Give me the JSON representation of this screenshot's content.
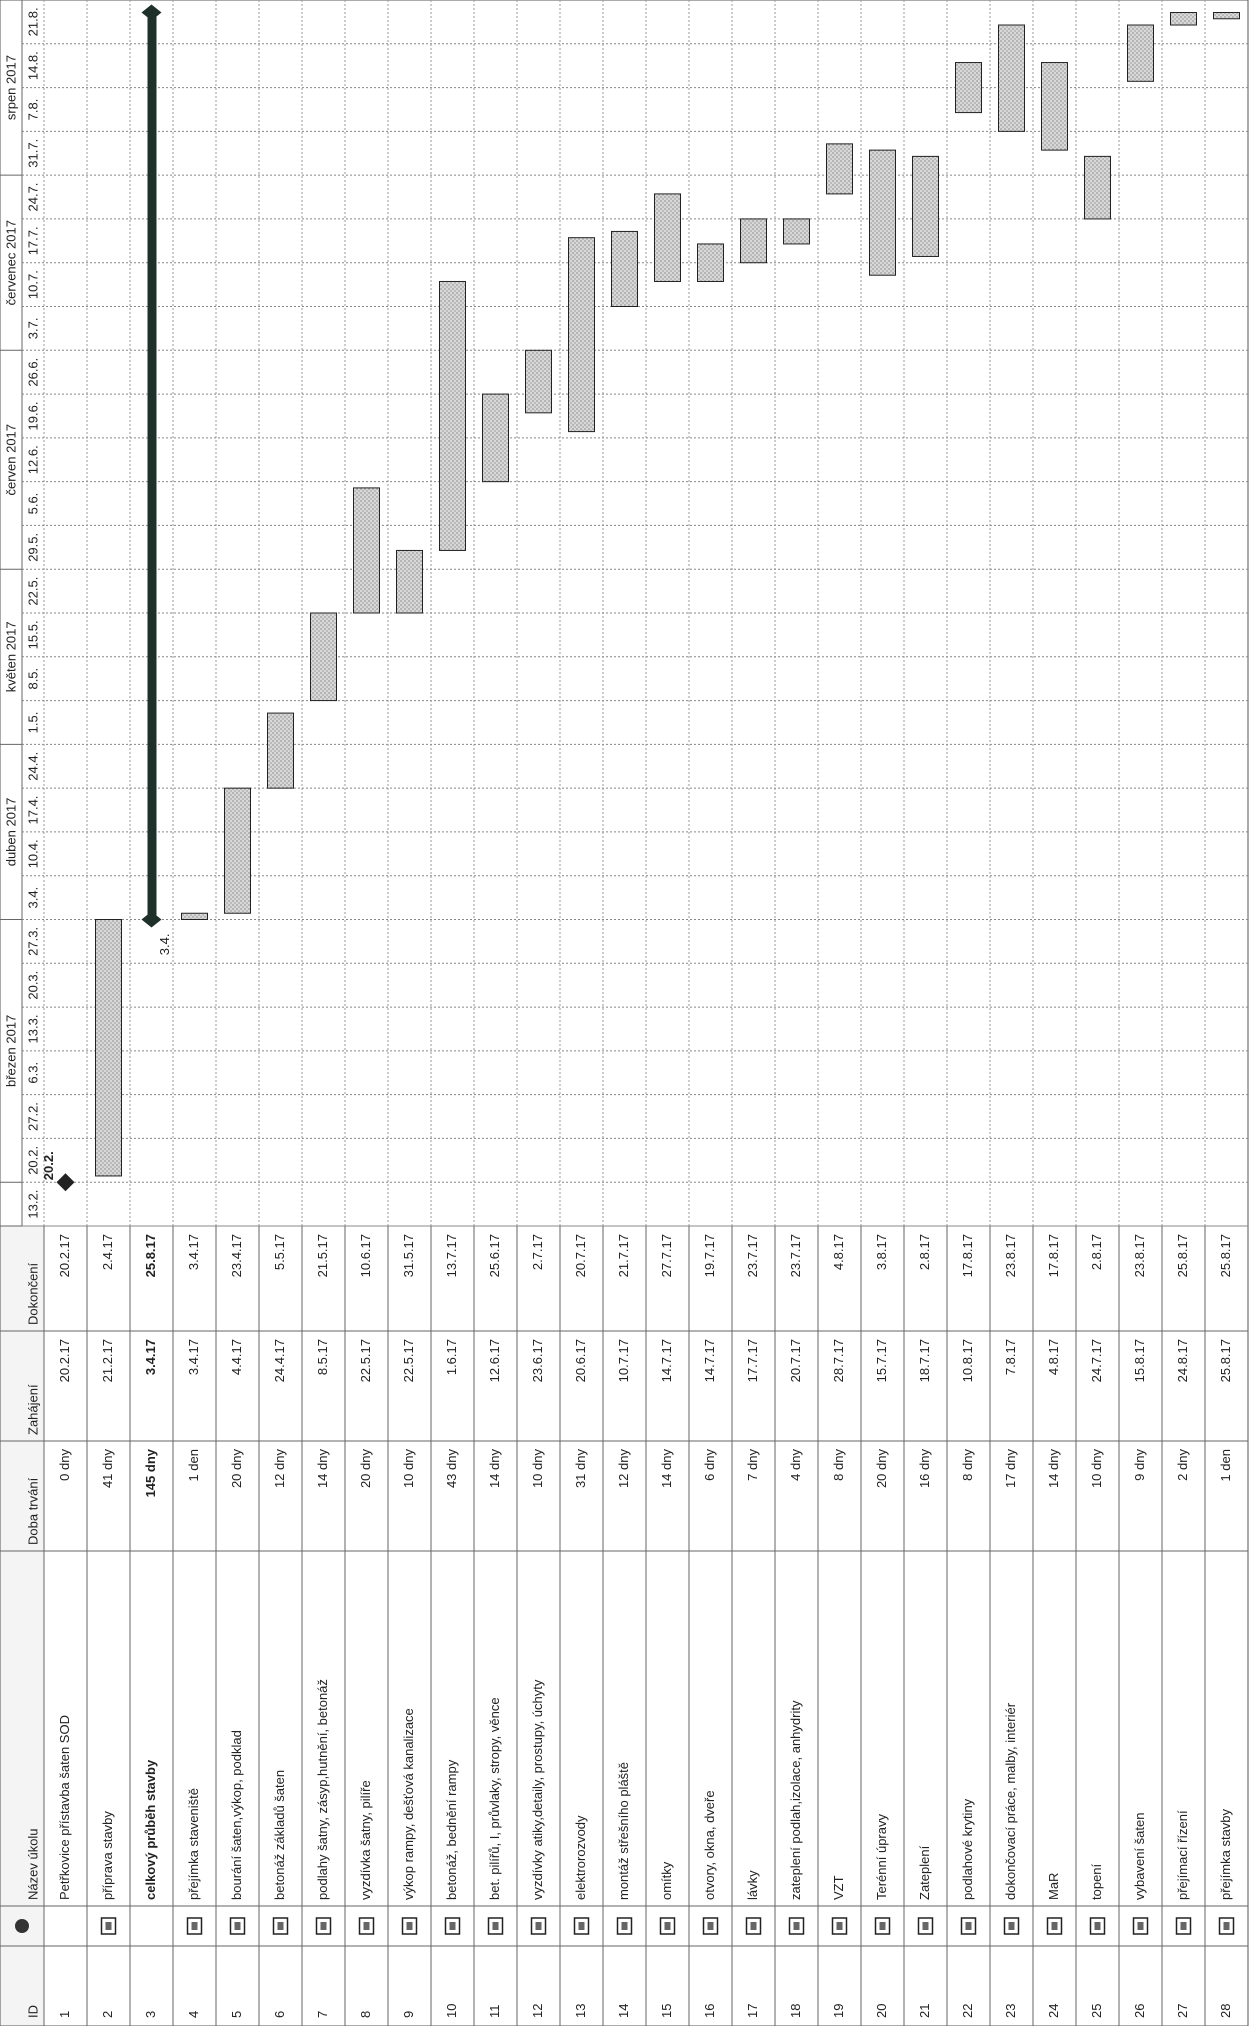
{
  "table": {
    "columns": [
      "ID",
      "Název úkolu",
      "Doba trvání",
      "Zahájení",
      "Dokončení"
    ],
    "tasks": [
      {
        "id": "1",
        "name": "Petřkovice přístavba šaten SOD",
        "duration": "0 dny",
        "start": "20.2.17",
        "finish": "20.2.17"
      },
      {
        "id": "2",
        "name": "příprava stavby",
        "duration": "41 dny",
        "start": "21.2.17",
        "finish": "2.4.17"
      },
      {
        "id": "3",
        "name": "celkový průběh stavby",
        "duration": "145 dny",
        "start": "3.4.17",
        "finish": "25.8.17"
      },
      {
        "id": "4",
        "name": "přejímka staveniště",
        "duration": "1 den",
        "start": "3.4.17",
        "finish": "3.4.17"
      },
      {
        "id": "5",
        "name": "bourání šaten,výkop, podklad",
        "duration": "20 dny",
        "start": "4.4.17",
        "finish": "23.4.17"
      },
      {
        "id": "6",
        "name": "betonáž základů šaten",
        "duration": "12 dny",
        "start": "24.4.17",
        "finish": "5.5.17"
      },
      {
        "id": "7",
        "name": "podlahy šatny, zásyp,hutnění, betonáž",
        "duration": "14 dny",
        "start": "8.5.17",
        "finish": "21.5.17"
      },
      {
        "id": "8",
        "name": "vyzdívka šatny, pilíře",
        "duration": "20 dny",
        "start": "22.5.17",
        "finish": "10.6.17"
      },
      {
        "id": "9",
        "name": "výkop rampy, dešťová kanalizace",
        "duration": "10 dny",
        "start": "22.5.17",
        "finish": "31.5.17"
      },
      {
        "id": "10",
        "name": "betonáž, bednění rampy",
        "duration": "43 dny",
        "start": "1.6.17",
        "finish": "13.7.17"
      },
      {
        "id": "11",
        "name": "bet. pilířů, I, průvlaky, stropy, věnce",
        "duration": "14 dny",
        "start": "12.6.17",
        "finish": "25.6.17"
      },
      {
        "id": "12",
        "name": "vyzdívky atiky,detaily, prostupy, úchyty",
        "duration": "10 dny",
        "start": "23.6.17",
        "finish": "2.7.17"
      },
      {
        "id": "13",
        "name": "elektrorozvody",
        "duration": "31 dny",
        "start": "20.6.17",
        "finish": "20.7.17"
      },
      {
        "id": "14",
        "name": "montáž střešního pláště",
        "duration": "12 dny",
        "start": "10.7.17",
        "finish": "21.7.17"
      },
      {
        "id": "15",
        "name": "omítky",
        "duration": "14 dny",
        "start": "14.7.17",
        "finish": "27.7.17"
      },
      {
        "id": "16",
        "name": "otvory, okna, dveře",
        "duration": "6 dny",
        "start": "14.7.17",
        "finish": "19.7.17"
      },
      {
        "id": "17",
        "name": "lávky",
        "duration": "7 dny",
        "start": "17.7.17",
        "finish": "23.7.17"
      },
      {
        "id": "18",
        "name": "zateplení podlah,izolace, anhydrity",
        "duration": "4 dny",
        "start": "20.7.17",
        "finish": "23.7.17"
      },
      {
        "id": "19",
        "name": "VZT",
        "duration": "8 dny",
        "start": "28.7.17",
        "finish": "4.8.17"
      },
      {
        "id": "20",
        "name": "Terénní úpravy",
        "duration": "20 dny",
        "start": "15.7.17",
        "finish": "3.8.17"
      },
      {
        "id": "21",
        "name": "Zateplení",
        "duration": "16 dny",
        "start": "18.7.17",
        "finish": "2.8.17"
      },
      {
        "id": "22",
        "name": "podlahové krytiny",
        "duration": "8 dny",
        "start": "10.8.17",
        "finish": "17.8.17"
      },
      {
        "id": "23",
        "name": "dokončovací práce, malby, interiér",
        "duration": "17 dny",
        "start": "7.8.17",
        "finish": "23.8.17"
      },
      {
        "id": "24",
        "name": "MaR",
        "duration": "14 dny",
        "start": "4.8.17",
        "finish": "17.8.17"
      },
      {
        "id": "25",
        "name": "topení",
        "duration": "10 dny",
        "start": "24.7.17",
        "finish": "2.8.17"
      },
      {
        "id": "26",
        "name": "vybavení šaten",
        "duration": "9 dny",
        "start": "15.8.17",
        "finish": "23.8.17"
      },
      {
        "id": "27",
        "name": "přejímací řízení",
        "duration": "2 dny",
        "start": "24.8.17",
        "finish": "25.8.17"
      },
      {
        "id": "28",
        "name": "přejímka stavby",
        "duration": "1 den",
        "start": "25.8.17",
        "finish": "25.8.17"
      }
    ]
  },
  "timeline": {
    "months": [
      "březen 2017",
      "duben 2017",
      "květen 2017",
      "červen 2017",
      "červenec 2017",
      "srpen 2017"
    ],
    "weeks": [
      "13.2.",
      "20.2.",
      "27.2.",
      "6.3.",
      "13.3.",
      "20.3.",
      "27.3.",
      "3.4.",
      "10.4.",
      "17.4.",
      "24.4.",
      "1.5.",
      "8.5.",
      "15.5.",
      "22.5.",
      "29.5.",
      "5.6.",
      "12.6.",
      "19.6.",
      "26.6.",
      "3.7.",
      "10.7.",
      "17.7.",
      "24.7.",
      "31.7.",
      "7.8.",
      "14.8.",
      "21.8."
    ],
    "milestone_label": "20.2.",
    "summary_label": "3.4."
  }
}
